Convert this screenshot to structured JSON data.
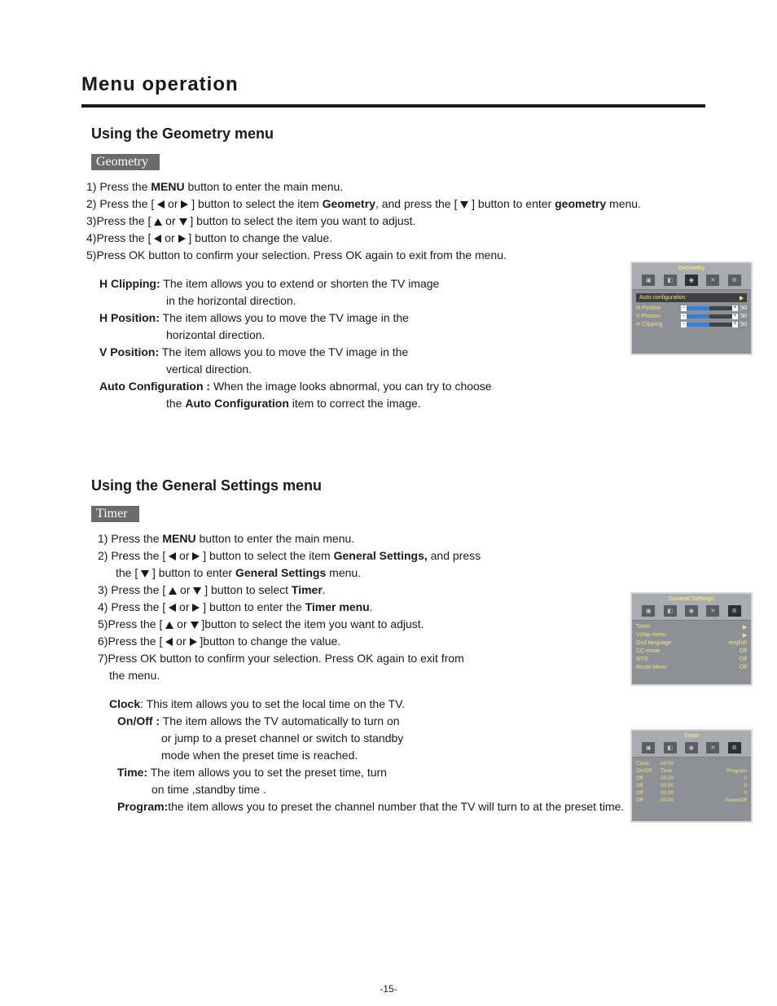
{
  "page": {
    "title": "Menu operation",
    "page_number": "-15-"
  },
  "geometry_section": {
    "heading": "Using the Geometry  menu",
    "tag": "Geometry",
    "steps": {
      "s1a": "1) Press the ",
      "s1b": "MENU",
      "s1c": " button to enter the main menu.",
      "s2a": "2) Press the [ ",
      "s2b": "or",
      "s2c": " ]  button to select the item ",
      "s2d": "Geometry",
      "s2e": ", and press the  [ ",
      "s2f": " ]  button to enter ",
      "s2g": "geometry",
      "s2h": " menu.",
      "s3a": "3)Press the  [ ",
      "s3b": "or",
      "s3c": " ] button to select the item you want to adjust.",
      "s4a": "4)Press the  [ ",
      "s4b": "or",
      "s4c": " ] button to change the value.",
      "s5": "5)Press OK button to confirm your selection. Press OK again to exit from the menu."
    },
    "defs": {
      "hclip_l": "H Clipping:",
      "hclip_t1": " The item allows you to extend or shorten the TV image",
      "hclip_t2": "in the horizontal direction.",
      "hpos_l": "H Position:",
      "hpos_t1": " The item allows you to move the TV image in the",
      "hpos_t2": "horizontal direction.",
      "vpos_l": "V Position:",
      "vpos_t1": " The item allows you to move the TV image in the",
      "vpos_t2": "vertical direction.",
      "auto_l": "Auto Configuration :",
      "auto_t1": " When the image looks abnormal, you can try to choose",
      "auto_t2a": "the ",
      "auto_t2b": "Auto Configuration",
      "auto_t2c": " item to correct the image."
    }
  },
  "gs_section": {
    "heading": "Using the General Settings  menu",
    "tag": "Timer",
    "steps": {
      "s1a": "1) Press the ",
      "s1b": "MENU",
      "s1c": " button to enter the main menu.",
      "s2a": "2) Press the [ ",
      "s2b": "or",
      "s2c": " ]  button to select the item ",
      "s2d": "General Settings,",
      "s2e": " and press",
      "s2f": "the [ ",
      "s2g": " ]  button to enter ",
      "s2h": "General Settings",
      "s2i": " menu.",
      "s3a": "3) Press the [ ",
      "s3b": "or",
      "s3c": " ]  button to select ",
      "s3d": "Timer",
      "s3e": ".",
      "s4a": "4) Press the [ ",
      "s4b": "or",
      "s4c": " ]  button to enter the ",
      "s4d": "Timer menu",
      "s4e": ".",
      "s5a": "5)Press the  [ ",
      "s5b": "or",
      "s5c": " ]button to select the item you want to adjust.",
      "s6a": "6)Press the  [ ",
      "s6b": "or",
      "s6c": " ]button to change the value.",
      "s7a": "7)Press OK button to confirm your selection. Press OK again to exit from",
      "s7b": "the menu."
    },
    "defs": {
      "clock_l": "Clock",
      "clock_t": ": This item allows you to set the local time on the TV.",
      "onoff_l": "On/Off :",
      "onoff_t1": " The item allows the TV automatically to turn on",
      "onoff_t2": "or jump to a preset channel or switch  to standby",
      "onoff_t3": "mode when the preset time is reached.",
      "time_l": "Time:",
      "time_t1": " The item allows you to set  the preset  time, turn",
      "time_t2": "on time ,standby time .",
      "prog_l": "Program:",
      "prog_t": "the item allows you to preset the channel number that the TV will turn to at the preset time."
    }
  },
  "osd_geometry": {
    "title": "Geometry",
    "auto": "Auto configuration",
    "rows": [
      {
        "label": "H Postion",
        "val": "50"
      },
      {
        "label": "V Postion",
        "val": "50"
      },
      {
        "label": "H Clipping",
        "val": "50"
      }
    ]
  },
  "osd_gs": {
    "title": "General Settings",
    "rows": [
      {
        "label": "Timer",
        "val": "▶"
      },
      {
        "label": "Vchip  menu",
        "val": "▶"
      },
      {
        "label": "Osd language",
        "val": "english"
      },
      {
        "label": "CC  mode",
        "val": "Off"
      },
      {
        "label": "MTS",
        "val": "Off"
      },
      {
        "label": "Reset Menu",
        "val": "Off"
      }
    ]
  },
  "osd_timer": {
    "title": "Timer",
    "clock_l": "Clock",
    "clock_v": "00:00",
    "hdr": [
      "On/Off",
      "Time",
      "Program"
    ],
    "rows": [
      [
        "Off",
        "00:00",
        "0"
      ],
      [
        "Off",
        "00:00",
        "0"
      ],
      [
        "Off",
        "00:00",
        "0"
      ],
      [
        "Off",
        "00:00",
        "PowerOff"
      ]
    ]
  }
}
